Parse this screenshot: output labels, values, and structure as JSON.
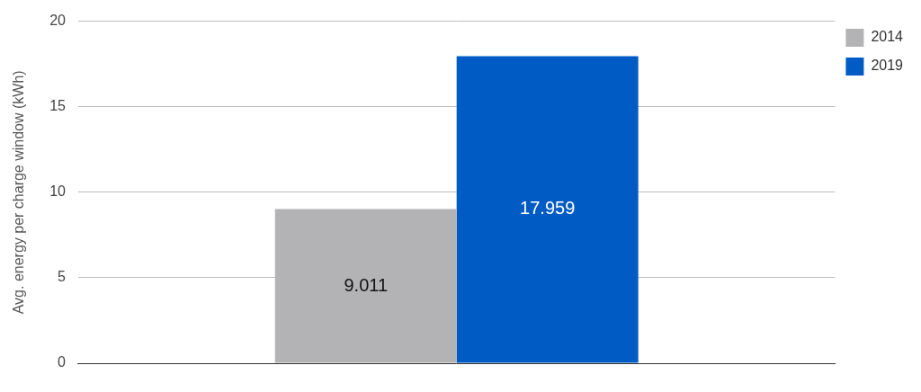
{
  "chart_data": {
    "type": "bar",
    "y_label": "Avg. energy per charge window (kWh)",
    "categories": [
      null
    ],
    "series": [
      {
        "name": "2014",
        "color": "#b3b3b5",
        "values": [
          9.011
        ]
      },
      {
        "name": "2019",
        "color": "#005bc5",
        "values": [
          17.959
        ]
      }
    ],
    "ylim": [
      0,
      20
    ],
    "yticks": [
      0,
      5,
      10,
      15,
      20
    ],
    "grid": true,
    "legend": "right",
    "data_labels": true,
    "tick_labels": "y"
  }
}
